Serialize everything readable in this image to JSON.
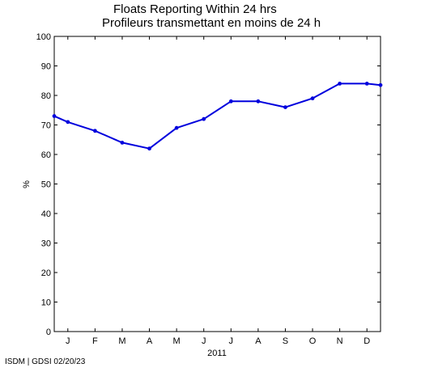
{
  "chart_data": {
    "type": "line",
    "title": "Floats Reporting Within 24 hrs",
    "subtitle": "Profileurs transmettant en moins de 24 h",
    "xlabel": "2011",
    "ylabel": "%",
    "ylim": [
      0,
      100
    ],
    "yticks": [
      0,
      10,
      20,
      30,
      40,
      50,
      60,
      70,
      80,
      90,
      100
    ],
    "xlim": [
      0,
      12
    ],
    "month_ticks": [
      "J",
      "F",
      "M",
      "A",
      "M",
      "J",
      "J",
      "A",
      "S",
      "O",
      "N",
      "D"
    ],
    "month_tick_x": [
      0.5,
      1.5,
      2.5,
      3.5,
      4.5,
      5.5,
      6.5,
      7.5,
      8.5,
      9.5,
      10.5,
      11.5
    ],
    "grid": false,
    "series": [
      {
        "color": "#0000dd",
        "x": [
          0.0,
          0.5,
          1.5,
          2.5,
          3.5,
          4.5,
          5.5,
          6.5,
          7.5,
          8.5,
          9.5,
          10.5,
          11.5,
          12.0
        ],
        "values": [
          73,
          71,
          68,
          64,
          62,
          69,
          72,
          78,
          78,
          76,
          79,
          84,
          84,
          83.5
        ]
      }
    ]
  },
  "footer": "ISDM | GDSI 02/20/23"
}
